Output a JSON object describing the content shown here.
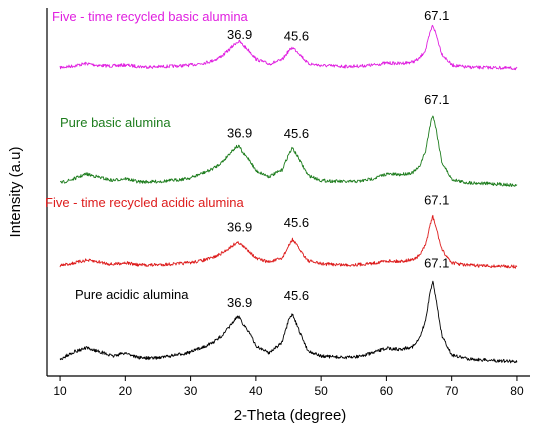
{
  "chart_data": {
    "type": "line",
    "xlabel": "2-Theta (degree)",
    "ylabel": "Intensity (a.u)",
    "xlim": [
      8,
      82
    ],
    "x_ticks": [
      "10",
      "20",
      "30",
      "40",
      "50",
      "60",
      "70",
      "80"
    ],
    "y_ticks_labeled": false,
    "grid": false,
    "legend": "labels placed above each trace",
    "peaks": [
      {
        "x": 36.9,
        "label": "36.9"
      },
      {
        "x": 45.6,
        "label": "45.6"
      },
      {
        "x": 67.1,
        "label": "67.1"
      }
    ],
    "series": [
      {
        "name": "Five - time recycled basic alumina",
        "color": "#e020e0",
        "x": [
          10,
          12,
          14,
          16,
          18,
          20,
          22,
          24,
          26,
          28,
          30,
          32,
          33,
          34,
          35,
          36,
          37,
          37.5,
          38,
          39,
          40,
          42,
          44,
          45,
          45.6,
          46.5,
          48,
          50,
          52,
          54,
          56,
          58,
          60,
          62,
          64,
          65,
          66,
          66.7,
          67.1,
          67.6,
          68.5,
          70,
          72,
          74,
          76,
          78,
          80
        ],
        "values": [
          0.05,
          0.08,
          0.13,
          0.09,
          0.08,
          0.1,
          0.07,
          0.06,
          0.07,
          0.08,
          0.1,
          0.14,
          0.17,
          0.22,
          0.3,
          0.42,
          0.55,
          0.57,
          0.5,
          0.38,
          0.22,
          0.12,
          0.2,
          0.38,
          0.45,
          0.35,
          0.13,
          0.09,
          0.08,
          0.07,
          0.08,
          0.1,
          0.14,
          0.13,
          0.16,
          0.22,
          0.4,
          0.75,
          0.9,
          0.72,
          0.32,
          0.1,
          0.06,
          0.05,
          0.05,
          0.04,
          0.03
        ]
      },
      {
        "name": "Pure basic alumina",
        "color": "#1e7d1e",
        "x": [
          10,
          12,
          14,
          16,
          18,
          20,
          22,
          24,
          26,
          28,
          30,
          32,
          33,
          34,
          35,
          36,
          37,
          37.5,
          38,
          39,
          40,
          42,
          44,
          45,
          45.6,
          46.5,
          48,
          50,
          52,
          54,
          56,
          58,
          60,
          62,
          64,
          65,
          66,
          66.7,
          67.1,
          67.6,
          68.5,
          70,
          72,
          74,
          76,
          78,
          80
        ],
        "values": [
          0.06,
          0.12,
          0.2,
          0.15,
          0.1,
          0.13,
          0.08,
          0.08,
          0.09,
          0.11,
          0.14,
          0.22,
          0.26,
          0.32,
          0.4,
          0.52,
          0.62,
          0.62,
          0.52,
          0.42,
          0.25,
          0.16,
          0.26,
          0.5,
          0.6,
          0.45,
          0.18,
          0.1,
          0.09,
          0.08,
          0.09,
          0.13,
          0.2,
          0.19,
          0.22,
          0.3,
          0.55,
          0.95,
          1.12,
          0.9,
          0.38,
          0.12,
          0.07,
          0.06,
          0.05,
          0.04,
          0.02
        ]
      },
      {
        "name": "Five - time recycled acidic alumina",
        "color": "#dd1c1c",
        "x": [
          10,
          12,
          14,
          16,
          18,
          20,
          22,
          24,
          26,
          28,
          30,
          32,
          33,
          34,
          35,
          36,
          37,
          37.5,
          38,
          39,
          40,
          42,
          44,
          45,
          45.6,
          46.5,
          48,
          50,
          52,
          54,
          56,
          58,
          60,
          62,
          64,
          65,
          66,
          66.7,
          67.1,
          67.6,
          68.5,
          70,
          72,
          74,
          76,
          78,
          80
        ],
        "values": [
          0.04,
          0.08,
          0.13,
          0.1,
          0.06,
          0.09,
          0.05,
          0.05,
          0.06,
          0.07,
          0.09,
          0.13,
          0.16,
          0.2,
          0.26,
          0.34,
          0.42,
          0.42,
          0.36,
          0.28,
          0.16,
          0.1,
          0.16,
          0.36,
          0.48,
          0.34,
          0.12,
          0.07,
          0.06,
          0.05,
          0.06,
          0.08,
          0.12,
          0.11,
          0.14,
          0.2,
          0.38,
          0.72,
          0.86,
          0.68,
          0.3,
          0.09,
          0.05,
          0.04,
          0.03,
          0.03,
          0.02
        ]
      },
      {
        "name": "Pure acidic alumina",
        "color": "#000000",
        "x": [
          10,
          12,
          14,
          16,
          18,
          20,
          22,
          24,
          26,
          28,
          30,
          32,
          33,
          34,
          35,
          36,
          37,
          37.5,
          38,
          39,
          40,
          42,
          44,
          45,
          45.6,
          46.5,
          48,
          50,
          52,
          54,
          56,
          58,
          60,
          62,
          64,
          65,
          66,
          66.7,
          67.1,
          67.6,
          68.5,
          70,
          72,
          74,
          76,
          78,
          80
        ],
        "values": [
          0.05,
          0.16,
          0.22,
          0.17,
          0.1,
          0.15,
          0.08,
          0.07,
          0.09,
          0.12,
          0.16,
          0.24,
          0.28,
          0.34,
          0.42,
          0.54,
          0.66,
          0.68,
          0.58,
          0.45,
          0.25,
          0.15,
          0.3,
          0.62,
          0.72,
          0.5,
          0.18,
          0.1,
          0.09,
          0.08,
          0.1,
          0.15,
          0.22,
          0.2,
          0.24,
          0.34,
          0.62,
          1.05,
          1.2,
          0.95,
          0.4,
          0.12,
          0.07,
          0.05,
          0.04,
          0.03,
          0.02
        ]
      }
    ]
  }
}
